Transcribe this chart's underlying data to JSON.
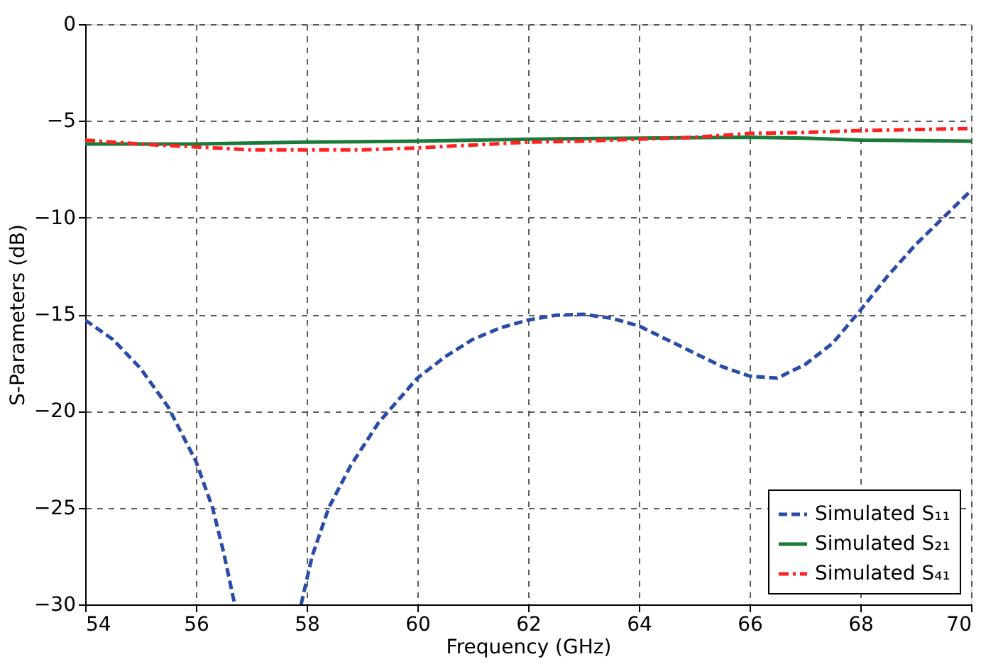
{
  "chart_data": {
    "type": "line",
    "xlabel": "Frequency (GHz)",
    "ylabel": "S-Parameters (dB)",
    "xlim": [
      54,
      70
    ],
    "xticks": [
      54,
      56,
      58,
      60,
      62,
      64,
      66,
      68,
      70
    ],
    "ylim": [
      -30,
      0
    ],
    "yticks": [
      -30,
      -25,
      -20,
      -15,
      -10,
      -5,
      0
    ],
    "grid": true,
    "legend": "bottom right",
    "series": [
      {
        "name": "Simulated S₁₁",
        "color": "#2b4ba8",
        "line_style": "dashed",
        "x": [
          54,
          54.5,
          55,
          55.5,
          56,
          56.3,
          56.5,
          56.7,
          57.3,
          57.9,
          58.1,
          58.4,
          58.8,
          59.3,
          60,
          60.5,
          61,
          61.5,
          62,
          62.5,
          63,
          63.5,
          64,
          64.5,
          65,
          65.5,
          66,
          66.5,
          67,
          67.5,
          68,
          68.5,
          69,
          69.5,
          70
        ],
        "values": [
          -15.3,
          -16.3,
          -17.8,
          -19.8,
          -22.6,
          -25,
          -27.3,
          -30,
          null,
          -30,
          -27.5,
          -25,
          -22.8,
          -20.6,
          -18.3,
          -17.2,
          -16.3,
          -15.7,
          -15.3,
          -15.05,
          -15,
          -15.2,
          -15.6,
          -16.3,
          -17,
          -17.7,
          -18.2,
          -18.3,
          -17.6,
          -16.5,
          -14.8,
          -13,
          -11.4,
          -10,
          -8.6
        ]
      },
      {
        "name": "Simulated S₂₁",
        "color": "#1a7a3a",
        "line_style": "solid",
        "x": [
          54,
          56,
          58,
          60,
          62,
          64,
          66,
          67,
          68,
          70
        ],
        "values": [
          -6.2,
          -6.2,
          -6.1,
          -6.05,
          -5.95,
          -5.9,
          -5.85,
          -5.9,
          -6.0,
          -6.05
        ]
      },
      {
        "name": "Simulated S₄₁",
        "color": "#ff2020",
        "line_style": "dashdot",
        "x": [
          54,
          55,
          56,
          57,
          58,
          59,
          60,
          61,
          62,
          63,
          64,
          65,
          66,
          67,
          68,
          69,
          70
        ],
        "values": [
          -6.0,
          -6.2,
          -6.35,
          -6.5,
          -6.5,
          -6.5,
          -6.4,
          -6.25,
          -6.1,
          -6.05,
          -5.95,
          -5.85,
          -5.65,
          -5.6,
          -5.5,
          -5.45,
          -5.4
        ]
      }
    ]
  }
}
